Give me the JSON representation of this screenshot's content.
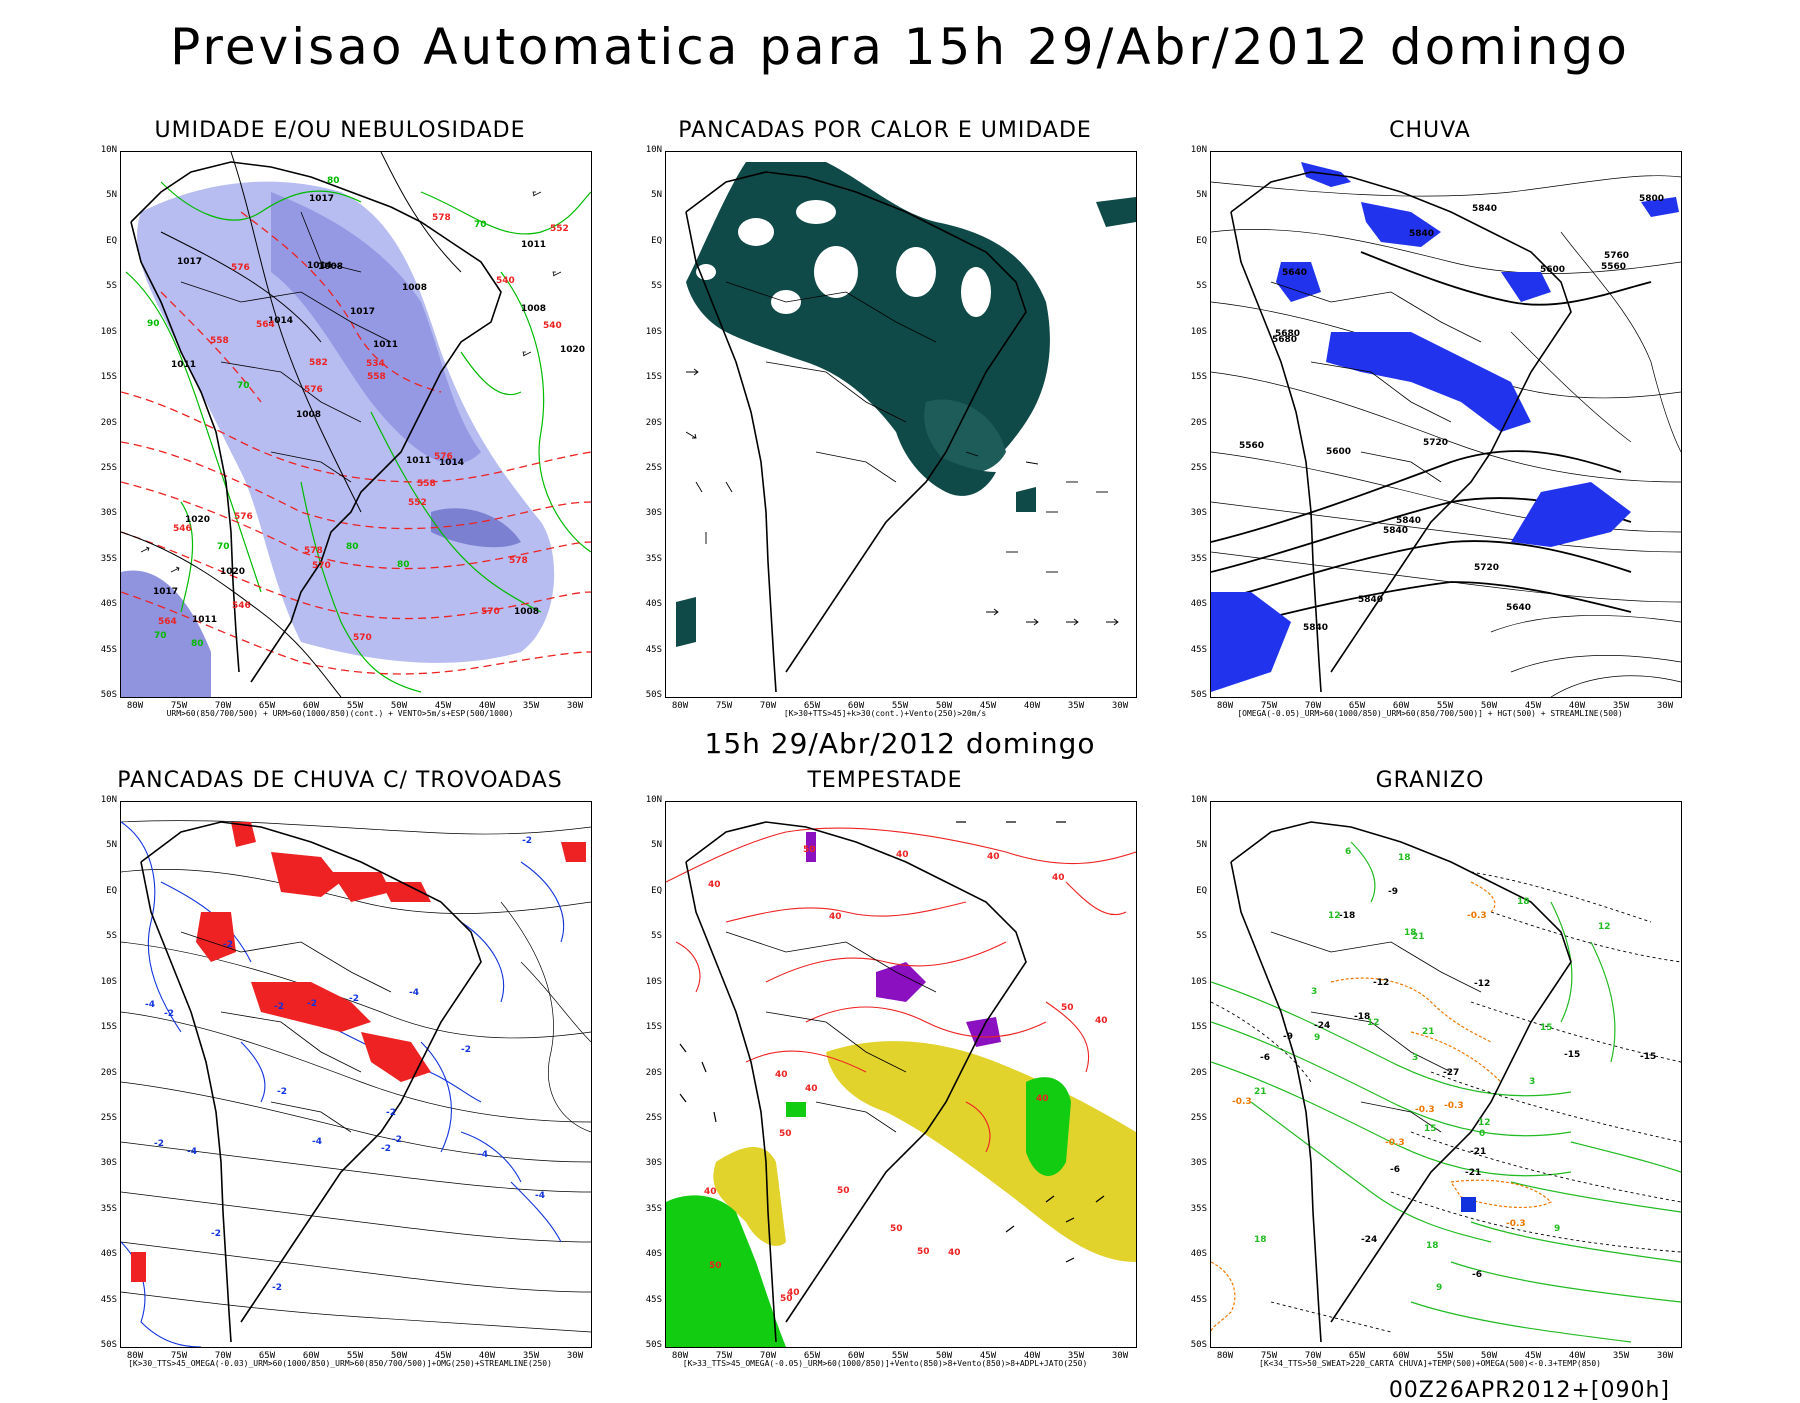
{
  "main_title": "Previsao Automatica para 15h 29/Abr/2012 domingo",
  "subtitle": "15h 29/Abr/2012 domingo",
  "footer_stamp": "00Z26APR2012+[090h]",
  "lat_labels": [
    "10N",
    "5N",
    "EQ",
    "5S",
    "10S",
    "15S",
    "20S",
    "25S",
    "30S",
    "35S",
    "40S",
    "45S",
    "50S"
  ],
  "lon_labels": [
    "80W",
    "75W",
    "70W",
    "65W",
    "60W",
    "55W",
    "50W",
    "45W",
    "40W",
    "35W",
    "30W"
  ],
  "panels": [
    {
      "title": "UMIDADE E/OU NEBULOSIDADE",
      "caption": "URM>60(850/700/500) + URM>60(1000/850)(cont.) + VENTO>5m/s+ESP(500/1000)",
      "contour_labels": [
        "1008",
        "1011",
        "1011",
        "1008",
        "1008",
        "1011",
        "1014",
        "1017",
        "1020",
        "1014",
        "1017",
        "1020",
        "1008",
        "1011",
        "1014",
        "1017",
        "1017",
        "1020",
        "1011",
        "1008",
        "576",
        "578",
        "582",
        "576",
        "578",
        "576",
        "570",
        "578",
        "576",
        "570",
        "564",
        "558",
        "552",
        "546",
        "540",
        "534",
        "564",
        "570",
        "558",
        "546",
        "540",
        "552",
        "558",
        "80",
        "70",
        "80",
        "70",
        "80",
        "70",
        "80",
        "70",
        "90"
      ],
      "colors": {
        "shade": "#aab0ee",
        "shade_dark": "#7c80d8",
        "green": "#00bb00",
        "red": "#ee2222"
      }
    },
    {
      "title": "PANCADAS POR CALOR E UMIDADE",
      "caption": "[K>30+TTS>45]+k>30(cont.)+Vento(250)>20m/s",
      "contour_labels": [],
      "colors": {
        "shade": "#0f4a48",
        "shade_light": "#2f7a75"
      }
    },
    {
      "title": "CHUVA",
      "caption": "[OMEGA(-0.05)_URM>60(1000/850)_URM>60(850/700/500)] + HGT(500) + STREAMLINE(500)",
      "contour_labels": [
        "5840",
        "5840",
        "5840",
        "5840",
        "5840",
        "5840",
        "5800",
        "5760",
        "5720",
        "5680",
        "5640",
        "5600",
        "5560",
        "5720",
        "5680",
        "5640",
        "5600",
        "5560"
      ],
      "colors": {
        "shade": "#2233ee"
      }
    },
    {
      "title": "PANCADAS DE CHUVA C/ TROVOADAS",
      "caption": "[K>30_TTS>45_OMEGA(-0.03)_URM>60(1000/850)_URM>60(850/700/500)]+OMG(250)+STREAMLINE(250)",
      "contour_labels": [
        "-2",
        "-2",
        "-2",
        "-2",
        "-2",
        "-2",
        "-2",
        "-2",
        "-2",
        "-2",
        "-2",
        "-4",
        "-4",
        "-4",
        "-4",
        "-4",
        "-4",
        "-2",
        "-2",
        "-2"
      ],
      "colors": {
        "shade": "#ee2222",
        "blue": "#1133dd"
      }
    },
    {
      "title": "TEMPESTADE",
      "caption": "[K>33_TTS>45_OMEGA(-0.05)_URM>60(1000/850)]+Vento(850)>8+Vento(850)>8+ADPL+JATO(250)",
      "contour_labels": [
        "40",
        "40",
        "40",
        "40",
        "50",
        "50",
        "50",
        "50",
        "50",
        "50",
        "40",
        "40",
        "40",
        "50",
        "40",
        "50",
        "40",
        "40",
        "40",
        "40"
      ],
      "colors": {
        "purple": "#8a10c0",
        "yellow": "#e2d22c",
        "green": "#11cc11",
        "red": "#ee2222"
      }
    },
    {
      "title": "GRANIZO",
      "caption": "[K<34_TTS>50_SWEAT>220_CARTA CHUVA]+TEMP(500)+OMEGA(500)<-0.3+TEMP(850)",
      "contour_labels": [
        "-6",
        "-6",
        "-6",
        "-9",
        "-9",
        "-12",
        "-12",
        "-15",
        "-15",
        "-18",
        "-18",
        "-21",
        "-21",
        "-24",
        "-24",
        "-27",
        "18",
        "18",
        "21",
        "21",
        "21",
        "18",
        "18",
        "15",
        "12",
        "12",
        "12",
        "9",
        "9",
        "6",
        "3",
        "3",
        "3",
        "0",
        "9",
        "12",
        "15",
        "18",
        "-0.3",
        "-0.3",
        "-0.3",
        "-0.3",
        "-0.3",
        "-0.3"
      ],
      "colors": {
        "green": "#22bb22",
        "orange": "#ee7700",
        "blue": "#1133dd"
      }
    }
  ]
}
